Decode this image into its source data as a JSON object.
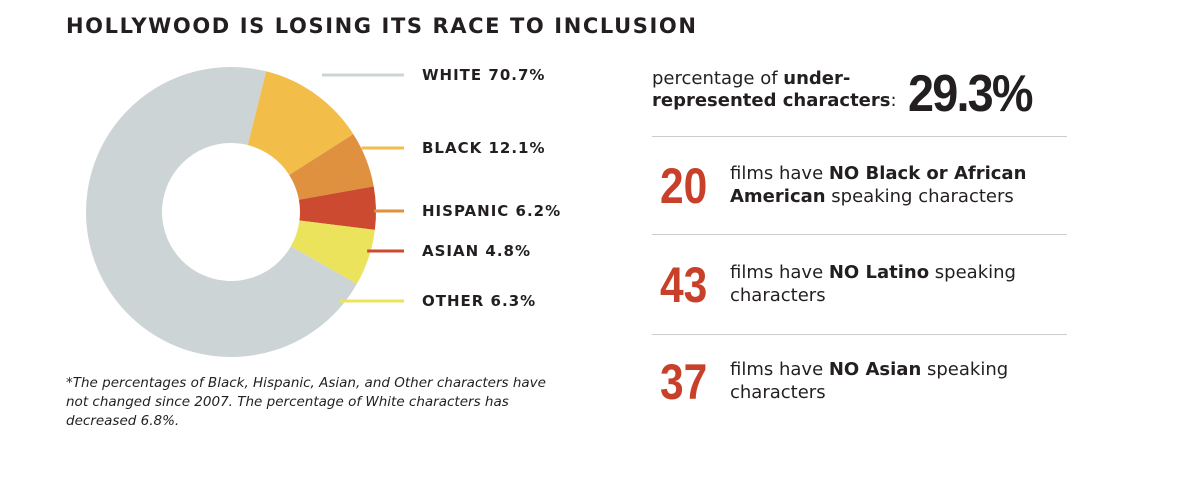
{
  "title": "HOLLYWOOD IS LOSING ITS RACE TO INCLUSION",
  "chart_data": {
    "type": "pie",
    "donut": true,
    "title": "HOLLYWOOD IS LOSING ITS RACE TO INCLUSION",
    "slices": [
      {
        "label": "WHITE 70.7%",
        "category": "WHITE",
        "value": 70.7,
        "color": "#ccd4d6"
      },
      {
        "label": "BLACK 12.1%",
        "category": "BLACK",
        "value": 12.1,
        "color": "#f2bd48"
      },
      {
        "label": "HISPANIC 6.2%",
        "category": "HISPANIC",
        "value": 6.2,
        "color": "#df9140"
      },
      {
        "label": "ASIAN 4.8%",
        "category": "ASIAN",
        "value": 4.8,
        "color": "#cc4a2f"
      },
      {
        "label": "OTHER 6.3%",
        "category": "OTHER",
        "value": 6.3,
        "color": "#ebe35c"
      }
    ],
    "legend": "right"
  },
  "footnote": "*The percentages of Black, Hispanic, Asian, and Other characters have not changed since 2007. The percentage of White characters has decreased 6.8%.",
  "summary": {
    "text_plain_1": "percentage of ",
    "text_bold": "under-represented characters",
    "text_plain_2": ":",
    "value": "29.3%"
  },
  "stats": [
    {
      "number": "20",
      "pre": "films have ",
      "bold": "NO Black or African American",
      "post": " speaking characters"
    },
    {
      "number": "43",
      "pre": "films have ",
      "bold": "NO Latino",
      "post": " speaking characters"
    },
    {
      "number": "37",
      "pre": "films have ",
      "bold": "NO Asian",
      "post": " speaking characters"
    }
  ],
  "colors": {
    "text": "#231f20",
    "accent": "#c9402a",
    "divider": "#cccccc"
  }
}
